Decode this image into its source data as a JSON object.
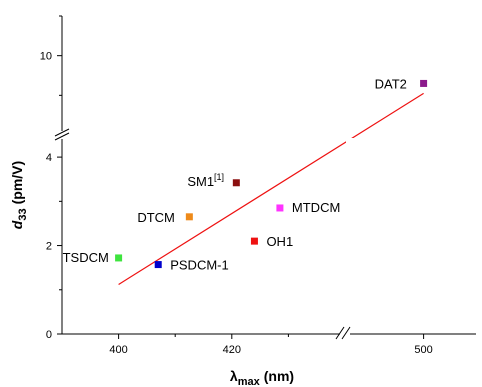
{
  "chart_data": {
    "type": "scatter",
    "title": "",
    "xlabel_base": "λ",
    "xlabel_sub": "max",
    "xlabel_unit": "(nm)",
    "ylabel_base": "d",
    "ylabel_sub": "33",
    "ylabel_unit": "(pm/V)",
    "x_axis": {
      "segments": [
        {
          "range": [
            390,
            440
          ]
        },
        {
          "range": [
            485,
            510
          ]
        }
      ],
      "ticks": [
        400,
        420,
        500
      ]
    },
    "y_axis": {
      "segments": [
        {
          "range": [
            0,
            4.5
          ]
        },
        {
          "range": [
            6,
            12
          ]
        }
      ],
      "ticks": [
        0,
        2,
        4,
        10
      ]
    },
    "points": [
      {
        "name": "TSDCM",
        "sup": "",
        "x": 400.0,
        "y": 1.72,
        "color": "#3ee43e"
      },
      {
        "name": "PSDCM-1",
        "sup": "",
        "x": 407.0,
        "y": 1.57,
        "color": "#0000cc"
      },
      {
        "name": "DTCM",
        "sup": "",
        "x": 412.5,
        "y": 2.65,
        "color": "#ee8a1a"
      },
      {
        "name": "SM1",
        "sup": "[1]",
        "x": 420.8,
        "y": 3.42,
        "color": "#8b0f0f"
      },
      {
        "name": "MTDCM",
        "sup": "",
        "x": 428.5,
        "y": 2.85,
        "color": "#ff33ff"
      },
      {
        "name": "OH1",
        "sup": "",
        "x": 424.0,
        "y": 2.1,
        "color": "#ee1111"
      },
      {
        "name": "DAT2",
        "sup": "",
        "x": 500.0,
        "y": 8.6,
        "color": "#8b1a8b"
      }
    ],
    "fit_line": {
      "color": "#ee1111",
      "x": [
        400,
        500
      ],
      "y": [
        1.12,
        8.1
      ]
    }
  }
}
